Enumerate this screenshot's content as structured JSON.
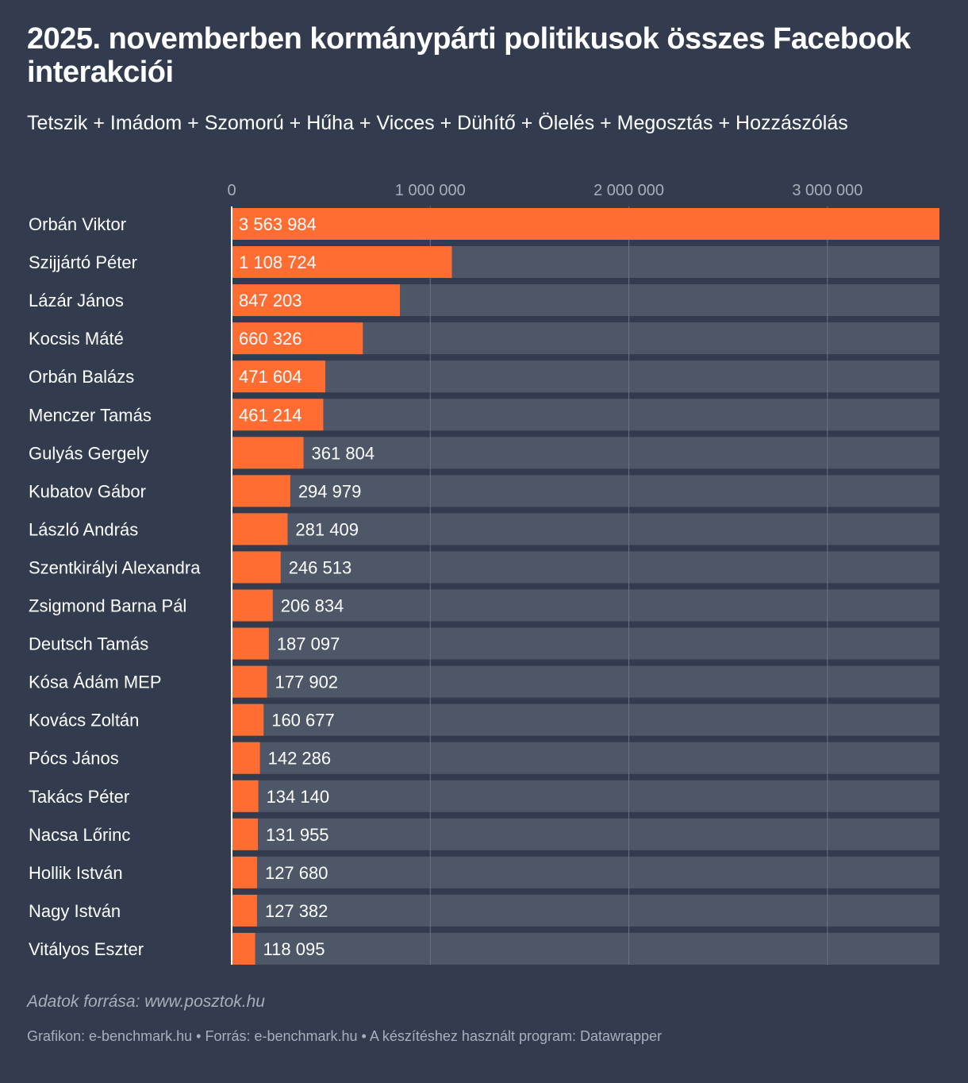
{
  "title": "2025. novemberben kormánypárti politikusok összes Facebook interakciói",
  "subtitle": "Tetszik + Imádom + Szomorú + Hűha + Vicces + Dühítő + Ölelés + Megosztás + Hozzászólás",
  "source_note": "Adatok forrása: www.posztok.hu",
  "footer": {
    "graphic": "Grafikon: e-benchmark.hu",
    "source": "Forrás: e-benchmark.hu",
    "tool": "A készítéshez használt program: Datawrapper",
    "separator": "•"
  },
  "colors": {
    "background": "#323c4e",
    "bar": "#ff6d33",
    "track": "#4e5768",
    "text": "#ffffff",
    "muted": "#a8afbb"
  },
  "chart_data": {
    "type": "bar",
    "orientation": "horizontal",
    "title": "2025. novemberben kormánypárti politikusok összes Facebook interakciói",
    "xlabel": "",
    "ylabel": "",
    "xlim": [
      0,
      3563984
    ],
    "grid": true,
    "ticks": [
      {
        "value": 0,
        "label": "0"
      },
      {
        "value": 1000000,
        "label": "1 000 000"
      },
      {
        "value": 2000000,
        "label": "2 000 000"
      },
      {
        "value": 3000000,
        "label": "3 000 000"
      }
    ],
    "categories": [
      "Orbán Viktor",
      "Szijjártó Péter",
      "Lázár János",
      "Kocsis Máté",
      "Orbán Balázs",
      "Menczer Tamás",
      "Gulyás Gergely",
      "Kubatov Gábor",
      "László András",
      "Szentkirályi Alexandra",
      "Zsigmond Barna Pál",
      "Deutsch Tamás",
      "Kósa Ádám MEP",
      "Kovács Zoltán",
      "Pócs János",
      "Takács Péter",
      "Nacsa Lőrinc",
      "Hollik István",
      "Nagy István",
      "Vitályos Eszter"
    ],
    "values": [
      3563984,
      1108724,
      847203,
      660326,
      471604,
      461214,
      361804,
      294979,
      281409,
      246513,
      206834,
      187097,
      177902,
      160677,
      142286,
      134140,
      131955,
      127680,
      127382,
      118095
    ],
    "value_labels": [
      "3 563 984",
      "1 108 724",
      "847 203",
      "660 326",
      "471 604",
      "461 214",
      "361 804",
      "294 979",
      "281 409",
      "246 513",
      "206 834",
      "187 097",
      "177 902",
      "160 677",
      "142 286",
      "134 140",
      "131 955",
      "127 680",
      "127 382",
      "118 095"
    ]
  }
}
